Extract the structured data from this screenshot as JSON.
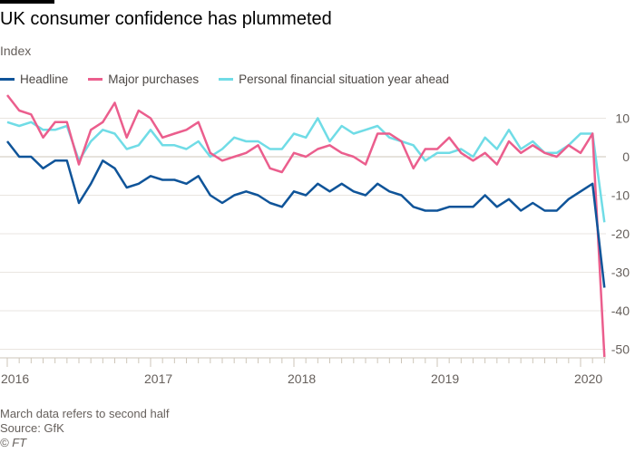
{
  "title": "UK consumer confidence has plummeted",
  "subtitle": "Index",
  "footer": {
    "note": "March data refers to second half",
    "source": "Source: GfK",
    "copyright": "© FT"
  },
  "chart_data": {
    "type": "line",
    "title": "UK consumer confidence has plummeted",
    "ylabel": "Index",
    "ylim": [
      -50,
      10
    ],
    "yticks": [
      10,
      0,
      -10,
      -20,
      -30,
      -40,
      -50
    ],
    "xticks": [
      "2016",
      "2017",
      "2018",
      "2019",
      "2020"
    ],
    "x_start": "2016-01",
    "x_end": "2020-03",
    "frequency": "monthly",
    "grid": true,
    "legend": "top-left",
    "series": [
      {
        "name": "Headline",
        "color": "#0f5499",
        "values": [
          4,
          0,
          0,
          -3,
          -1,
          -1,
          -12,
          -7,
          -1,
          -3,
          -8,
          -7,
          -5,
          -6,
          -6,
          -7,
          -5,
          -10,
          -12,
          -10,
          -9,
          -10,
          -12,
          -13,
          -9,
          -10,
          -7,
          -9,
          -7,
          -9,
          -10,
          -7,
          -9,
          -10,
          -13,
          -14,
          -14,
          -13,
          -13,
          -13,
          -10,
          -13,
          -11,
          -14,
          -12,
          -14,
          -14,
          -11,
          -9,
          -7,
          -34
        ]
      },
      {
        "name": "Major purchases",
        "color": "#eb5e8d",
        "values": [
          16,
          12,
          11,
          5,
          9,
          9,
          -2,
          7,
          9,
          14,
          5,
          12,
          10,
          5,
          6,
          7,
          9,
          1,
          -1,
          0,
          1,
          3,
          -3,
          -4,
          1,
          0,
          2,
          3,
          1,
          0,
          -2,
          6,
          6,
          4,
          -3,
          2,
          2,
          5,
          1,
          -1,
          1,
          -2,
          4,
          1,
          3,
          1,
          0,
          3,
          1,
          6,
          -52
        ]
      },
      {
        "name": "Personal financial situation year ahead",
        "color": "#70dce6",
        "values": [
          9,
          8,
          9,
          7,
          7,
          8,
          -1,
          4,
          7,
          6,
          2,
          3,
          7,
          3,
          3,
          2,
          4,
          0,
          2,
          5,
          4,
          4,
          2,
          2,
          6,
          5,
          10,
          4,
          8,
          6,
          7,
          8,
          5,
          4,
          3,
          -1,
          1,
          1,
          2,
          0,
          5,
          2,
          7,
          2,
          4,
          1,
          1,
          3,
          6,
          6,
          -17
        ]
      }
    ]
  }
}
